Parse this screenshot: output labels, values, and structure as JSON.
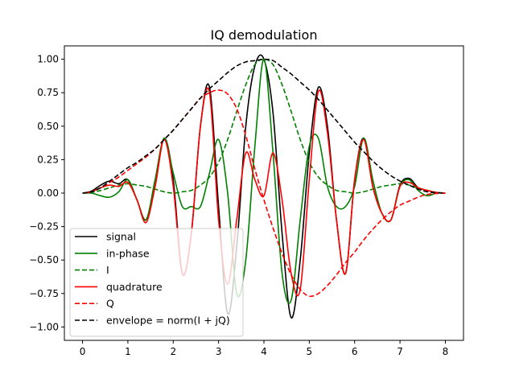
{
  "chart_data": {
    "type": "line",
    "title": "IQ demodulation",
    "xlabel": "",
    "ylabel": "",
    "xlim": [
      -0.4,
      8.4
    ],
    "ylim": [
      -1.1,
      1.1
    ],
    "x_ticks": [
      0,
      1,
      2,
      3,
      4,
      5,
      6,
      7,
      8
    ],
    "x_tick_labels": [
      "0",
      "1",
      "2",
      "3",
      "4",
      "5",
      "6",
      "7",
      "8"
    ],
    "y_ticks": [
      1.0,
      0.75,
      0.5,
      0.25,
      0.0,
      -0.25,
      -0.5,
      -0.75,
      -1.0
    ],
    "y_tick_labels": [
      "1.00",
      "0.75",
      "0.50",
      "0.25",
      "0.00",
      "−0.25",
      "−0.50",
      "−0.75",
      "−1.00"
    ],
    "grid": false,
    "legend_position": "lower-left",
    "x": [
      0,
      0.2,
      0.4,
      0.6,
      0.8,
      1.0,
      1.2,
      1.4,
      1.6,
      1.8,
      2.0,
      2.2,
      2.4,
      2.6,
      2.8,
      3.0,
      3.2,
      3.4,
      3.6,
      3.8,
      4.0,
      4.2,
      4.4,
      4.6,
      4.8,
      5.0,
      5.2,
      5.4,
      5.6,
      5.8,
      6.0,
      6.2,
      6.4,
      6.6,
      6.8,
      7.0,
      7.2,
      7.4,
      7.6,
      7.8,
      8.0
    ],
    "series": [
      {
        "name": "signal",
        "color": "#000000",
        "style": "solid",
        "values": [
          0.0,
          0.015,
          0.06,
          0.09,
          0.07,
          0.1,
          -0.05,
          -0.2,
          0.05,
          0.41,
          0.1,
          -0.6,
          -0.3,
          0.5,
          0.79,
          -0.1,
          -0.9,
          -0.4,
          0.5,
          0.95,
          1.0,
          0.6,
          -0.3,
          -0.93,
          -0.5,
          0.3,
          0.79,
          0.5,
          -0.2,
          -0.6,
          0.1,
          0.41,
          0.05,
          -0.15,
          -0.2,
          0.06,
          0.11,
          0.04,
          0.02,
          0.005,
          0.0
        ]
      },
      {
        "name": "in-phase",
        "color": "#008000",
        "style": "solid",
        "values": [
          0.0,
          0.0,
          -0.02,
          -0.03,
          0.01,
          0.1,
          -0.05,
          -0.2,
          0.1,
          0.41,
          0.15,
          -0.1,
          -0.1,
          -0.1,
          0.15,
          0.4,
          0.0,
          -0.75,
          -0.5,
          0.35,
          1.0,
          0.3,
          -0.6,
          -0.8,
          -0.2,
          0.35,
          0.41,
          0.05,
          -0.1,
          -0.1,
          0.05,
          0.41,
          0.1,
          -0.15,
          -0.2,
          0.05,
          0.1,
          0.02,
          -0.02,
          0.0,
          0.0
        ]
      },
      {
        "name": "I",
        "color": "#008000",
        "style": "dashed",
        "values": [
          0.0,
          0.005,
          0.02,
          0.04,
          0.06,
          0.07,
          0.06,
          0.05,
          0.03,
          0.01,
          0.0,
          0.01,
          0.02,
          0.06,
          0.12,
          0.23,
          0.4,
          0.61,
          0.81,
          0.96,
          1.0,
          0.96,
          0.81,
          0.61,
          0.4,
          0.23,
          0.12,
          0.06,
          0.02,
          0.01,
          0.0,
          0.01,
          0.03,
          0.05,
          0.06,
          0.07,
          0.06,
          0.04,
          0.02,
          0.005,
          0.0
        ]
      },
      {
        "name": "quadrature",
        "color": "#ff0000",
        "style": "solid",
        "values": [
          0.0,
          0.01,
          0.04,
          0.06,
          0.05,
          0.08,
          -0.05,
          -0.22,
          0.05,
          0.4,
          0.05,
          -0.6,
          -0.3,
          0.5,
          0.75,
          -0.2,
          -0.68,
          -0.2,
          0.3,
          0.1,
          -0.02,
          0.3,
          -0.05,
          -0.6,
          -0.72,
          0.1,
          0.76,
          0.45,
          -0.2,
          -0.6,
          0.1,
          0.4,
          0.05,
          -0.15,
          -0.2,
          0.05,
          0.08,
          0.04,
          0.02,
          0.005,
          0.0
        ]
      },
      {
        "name": "Q",
        "color": "#ff0000",
        "style": "dashed",
        "values": [
          0.0,
          0.01,
          0.04,
          0.08,
          0.12,
          0.17,
          0.22,
          0.27,
          0.33,
          0.4,
          0.47,
          0.55,
          0.63,
          0.71,
          0.75,
          0.77,
          0.74,
          0.63,
          0.43,
          0.18,
          -0.05,
          -0.26,
          -0.45,
          -0.61,
          -0.72,
          -0.77,
          -0.75,
          -0.69,
          -0.61,
          -0.52,
          -0.44,
          -0.35,
          -0.27,
          -0.2,
          -0.14,
          -0.09,
          -0.06,
          -0.03,
          -0.01,
          -0.003,
          0.0
        ]
      },
      {
        "name": "envelope = norm(I + jQ)",
        "color": "#000000",
        "style": "dashed",
        "values": [
          0.0,
          0.01,
          0.04,
          0.09,
          0.14,
          0.19,
          0.23,
          0.28,
          0.33,
          0.4,
          0.47,
          0.55,
          0.63,
          0.71,
          0.78,
          0.84,
          0.9,
          0.95,
          0.98,
          0.99,
          1.0,
          0.99,
          0.94,
          0.89,
          0.83,
          0.77,
          0.7,
          0.62,
          0.54,
          0.46,
          0.38,
          0.31,
          0.24,
          0.18,
          0.13,
          0.09,
          0.06,
          0.03,
          0.01,
          0.003,
          0.0
        ]
      }
    ]
  },
  "legend": {
    "entries": [
      {
        "label": "signal",
        "color": "#000000",
        "style": "solid"
      },
      {
        "label": "in-phase",
        "color": "#008000",
        "style": "solid"
      },
      {
        "label": "I",
        "color": "#008000",
        "style": "dashed"
      },
      {
        "label": "quadrature",
        "color": "#ff0000",
        "style": "solid"
      },
      {
        "label": "Q",
        "color": "#ff0000",
        "style": "dashed"
      },
      {
        "label": "envelope = norm(I + jQ)",
        "color": "#000000",
        "style": "dashed"
      }
    ]
  }
}
